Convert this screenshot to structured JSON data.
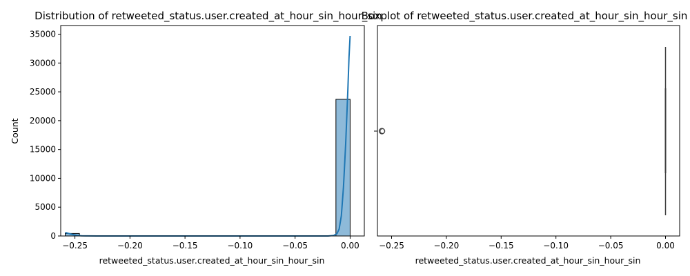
{
  "chart_data": [
    {
      "type": "histogram",
      "title": "Distribution of retweeted_status.user.created_at_hour_sin_hour_sin",
      "xlabel": "retweeted_status.user.created_at_hour_sin_hour_sin",
      "ylabel": "Count",
      "xlim": [
        -0.2629,
        0.0129
      ],
      "ylim": [
        0,
        36500
      ],
      "xticks": [
        -0.25,
        -0.2,
        -0.15,
        -0.1,
        -0.05,
        0.0
      ],
      "xtick_labels": [
        "−0.25",
        "−0.20",
        "−0.15",
        "−0.10",
        "−0.05",
        "0.00"
      ],
      "yticks": [
        0,
        5000,
        10000,
        15000,
        20000,
        25000,
        30000,
        35000
      ],
      "ytick_labels": [
        "0",
        "5000",
        "10000",
        "15000",
        "20000",
        "25000",
        "30000",
        "35000"
      ],
      "bins": [
        {
          "x0": -0.2588,
          "x1": -0.2459,
          "count": 430
        },
        {
          "x0": -0.2459,
          "x1": -0.2329,
          "count": 0
        },
        {
          "x0": -0.2329,
          "x1": -0.22,
          "count": 0
        },
        {
          "x0": -0.22,
          "x1": -0.207,
          "count": 0
        },
        {
          "x0": -0.207,
          "x1": -0.1941,
          "count": 0
        },
        {
          "x0": -0.1941,
          "x1": -0.1812,
          "count": 0
        },
        {
          "x0": -0.1812,
          "x1": -0.1682,
          "count": 0
        },
        {
          "x0": -0.1682,
          "x1": -0.1553,
          "count": 0
        },
        {
          "x0": -0.1553,
          "x1": -0.1423,
          "count": 0
        },
        {
          "x0": -0.1423,
          "x1": -0.1294,
          "count": 0
        },
        {
          "x0": -0.1294,
          "x1": -0.1165,
          "count": 0
        },
        {
          "x0": -0.1165,
          "x1": -0.1035,
          "count": 0
        },
        {
          "x0": -0.1035,
          "x1": -0.0906,
          "count": 0
        },
        {
          "x0": -0.0906,
          "x1": -0.0776,
          "count": 0
        },
        {
          "x0": -0.0776,
          "x1": -0.0647,
          "count": 0
        },
        {
          "x0": -0.0647,
          "x1": -0.0518,
          "count": 0
        },
        {
          "x0": -0.0518,
          "x1": -0.0388,
          "count": 0
        },
        {
          "x0": -0.0388,
          "x1": -0.0259,
          "count": 0
        },
        {
          "x0": -0.0259,
          "x1": -0.0129,
          "count": 0
        },
        {
          "x0": -0.0129,
          "x1": 0.0,
          "count": 23700
        }
      ],
      "kde": {
        "x": [
          -0.2588,
          -0.256,
          -0.252,
          -0.248,
          -0.244,
          -0.24,
          -0.23,
          -0.2,
          -0.15,
          -0.1,
          -0.05,
          -0.02,
          -0.015,
          -0.012,
          -0.01,
          -0.008,
          -0.006,
          -0.004,
          -0.002,
          -0.001,
          0.0
        ],
        "y": [
          600,
          450,
          250,
          100,
          40,
          10,
          0,
          0,
          0,
          0,
          0,
          0,
          100,
          400,
          1200,
          3500,
          8500,
          16000,
          25500,
          31000,
          34700
        ]
      },
      "colors": {
        "bar_fill": "#8ebad9",
        "bar_edge": "#000000",
        "kde_line": "#1f77b4"
      }
    },
    {
      "type": "boxplot",
      "title": "Boxplot of retweeted_status.user.created_at_hour_sin_hour_sin",
      "xlabel": "retweeted_status.user.created_at_hour_sin_hour_sin",
      "xlim": [
        -0.2629,
        0.0129
      ],
      "xticks": [
        -0.25,
        -0.2,
        -0.15,
        -0.1,
        -0.05,
        0.0
      ],
      "xtick_labels": [
        "−0.25",
        "−0.20",
        "−0.15",
        "−0.10",
        "−0.05",
        "0.00"
      ],
      "median": 0.0,
      "q1": 0.0,
      "q3": 0.0,
      "whisker_low": 0.0,
      "whisker_high": 0.0,
      "outliers": [
        -0.2588
      ],
      "colors": {
        "box_line": "#3f3f3f",
        "outlier_edge": "#3f3f3f"
      }
    }
  ]
}
